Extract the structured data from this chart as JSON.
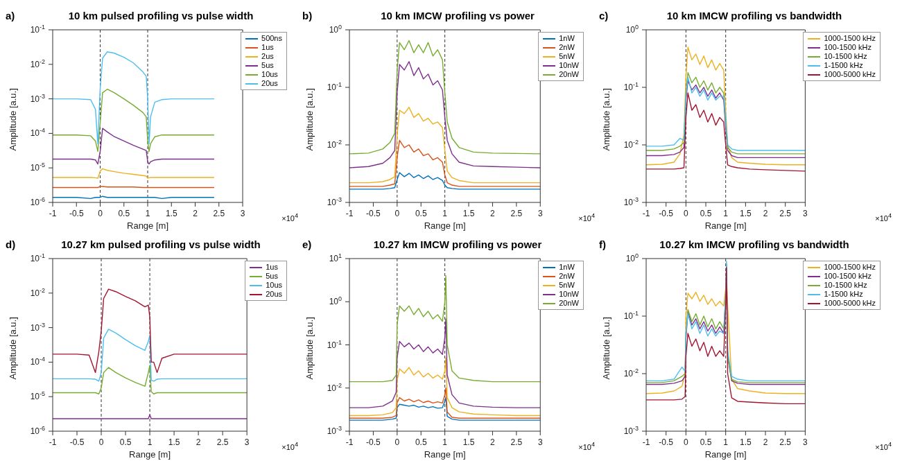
{
  "chart_data": [
    {
      "type": "line",
      "title": "10 km pulsed profiling vs pulse width",
      "xlabel": "Range  [m]",
      "ylabel": "Amplitude  [a.u.]",
      "annotations": [
        "a)",
        "×10$^{4}$"
      ],
      "log": true,
      "legend": "top right",
      "line_style": "solid",
      "xlim": [
        -1,
        3
      ],
      "xticks": [
        -1,
        -0.5,
        0,
        0.5,
        1,
        1.5,
        2,
        2.5,
        3
      ],
      "ylim": [
        1e-06,
        0.1
      ],
      "yticks": [
        {
          "value": 1e-06,
          "label": "10$^{-6}$"
        },
        {
          "value": 1e-05,
          "label": "10$^{-5}$"
        },
        {
          "value": 0.0001,
          "label": "10$^{-4}$"
        },
        {
          "value": 0.001,
          "label": "10$^{-3}$"
        },
        {
          "value": 0.01,
          "label": "10$^{-2}$"
        },
        {
          "value": 0.1,
          "label": "10$^{-1}$"
        }
      ],
      "ref_lines": [
        {
          "axis": "x",
          "value": 0,
          "color": "#333333",
          "line_style": "dashed"
        },
        {
          "axis": "x",
          "value": 1,
          "color": "#333333",
          "line_style": "dashed"
        }
      ],
      "x": [
        -1,
        -0.5,
        -0.2,
        -0.1,
        -0.05,
        0,
        0.05,
        0.15,
        0.3,
        0.5,
        0.7,
        0.9,
        0.97,
        1.0,
        1.03,
        1.06,
        1.15,
        1.3,
        1.5,
        2,
        2.4
      ],
      "series": [
        {
          "name": "500ns",
          "color": "#0072bd",
          "values": [
            1.4e-06,
            1.4e-06,
            1.3e-06,
            1.4e-06,
            1.4e-06,
            1.4e-06,
            1.5e-06,
            1.4e-06,
            1.4e-06,
            1.4e-06,
            1.4e-06,
            1.4e-06,
            1.4e-06,
            1.4e-06,
            1.4e-06,
            1.4e-06,
            1.4e-06,
            1.3e-06,
            1.4e-06,
            1.4e-06,
            1.4e-06
          ]
        },
        {
          "name": "1us",
          "color": "#d95319",
          "values": [
            2.7e-06,
            2.7e-06,
            2.7e-06,
            2.7e-06,
            2.7e-06,
            2.9e-06,
            2.9e-06,
            2.8e-06,
            2.8e-06,
            2.8e-06,
            2.8e-06,
            2.7e-06,
            2.7e-06,
            2.7e-06,
            2.7e-06,
            2.7e-06,
            2.7e-06,
            2.7e-06,
            2.7e-06,
            2.7e-06,
            2.7e-06
          ]
        },
        {
          "name": "2us",
          "color": "#edb120",
          "values": [
            5.3e-06,
            5.3e-06,
            5.3e-06,
            5.2e-06,
            5e-06,
            8e-06,
            9.5e-06,
            8.5e-06,
            7.8e-06,
            7e-06,
            6.5e-06,
            6e-06,
            5.8e-06,
            5e-06,
            5.2e-06,
            5.3e-06,
            5.3e-06,
            5.3e-06,
            5.3e-06,
            5.3e-06,
            5.3e-06
          ]
        },
        {
          "name": "5us",
          "color": "#7e2f8e",
          "values": [
            1.8e-05,
            1.8e-05,
            1.8e-05,
            1.7e-05,
            1.3e-05,
            3e-05,
            0.00014,
            0.00011,
            8e-05,
            6e-05,
            4.5e-05,
            3.5e-05,
            3.2e-05,
            1.5e-05,
            1.3e-05,
            1.5e-05,
            1.7e-05,
            1.8e-05,
            1.8e-05,
            1.8e-05,
            1.8e-05
          ]
        },
        {
          "name": "10us",
          "color": "#77ac30",
          "values": [
            9e-05,
            9e-05,
            8.5e-05,
            6e-05,
            3e-05,
            0.0002,
            0.0015,
            0.0019,
            0.0015,
            0.001,
            0.00065,
            0.0004,
            0.0003,
            6e-05,
            3e-05,
            5e-05,
            8e-05,
            9e-05,
            9e-05,
            9e-05,
            9e-05
          ]
        },
        {
          "name": "20us",
          "color": "#4dbeee",
          "values": [
            0.001,
            0.001,
            0.00095,
            0.0005,
            5e-05,
            0.002,
            0.015,
            0.023,
            0.021,
            0.016,
            0.011,
            0.006,
            0.0045,
            0.001,
            5e-05,
            0.0003,
            0.0008,
            0.00095,
            0.001,
            0.001,
            0.001
          ]
        }
      ]
    },
    {
      "type": "line",
      "title": "10 km IMCW profiling vs power",
      "xlabel": "Range  [m]",
      "ylabel": "Amplitude  [a.u.]",
      "annotations": [
        "b)",
        "×10$^{4}$"
      ],
      "log": true,
      "legend": "top right",
      "line_style": "solid",
      "xlim": [
        -1,
        3
      ],
      "xticks": [
        -1,
        -0.5,
        0,
        0.5,
        1,
        1.5,
        2,
        2.5,
        3
      ],
      "ylim": [
        0.001,
        1
      ],
      "yticks": [
        {
          "value": 0.001,
          "label": "10$^{-3}$"
        },
        {
          "value": 0.01,
          "label": "10$^{-2}$"
        },
        {
          "value": 0.1,
          "label": "10$^{-1}$"
        },
        {
          "value": 1,
          "label": "10$^{0}$"
        }
      ],
      "ref_lines": [
        {
          "axis": "x",
          "value": 0,
          "color": "#333333",
          "line_style": "dashed"
        },
        {
          "axis": "x",
          "value": 1,
          "color": "#333333",
          "line_style": "dashed"
        }
      ],
      "x": [
        -1,
        -0.6,
        -0.3,
        -0.15,
        -0.05,
        0,
        0.05,
        0.15,
        0.25,
        0.35,
        0.45,
        0.55,
        0.65,
        0.75,
        0.85,
        0.95,
        1.0,
        1.05,
        1.15,
        1.3,
        1.6,
        2,
        2.5,
        3
      ],
      "series": [
        {
          "name": "1nW",
          "color": "#0072bd",
          "values": [
            0.0017,
            0.0017,
            0.0017,
            0.00175,
            0.0018,
            0.0025,
            0.0033,
            0.0028,
            0.0032,
            0.0027,
            0.003,
            0.0026,
            0.0029,
            0.0025,
            0.0027,
            0.0024,
            0.002,
            0.0018,
            0.00175,
            0.0017,
            0.0017,
            0.0017,
            0.0017,
            0.0017
          ]
        },
        {
          "name": "2nW",
          "color": "#d95319",
          "values": [
            0.0019,
            0.0019,
            0.0019,
            0.002,
            0.0021,
            0.006,
            0.012,
            0.009,
            0.01,
            0.0075,
            0.0085,
            0.0065,
            0.007,
            0.0055,
            0.006,
            0.005,
            0.003,
            0.0022,
            0.002,
            0.0019,
            0.0019,
            0.0019,
            0.0019,
            0.0019
          ]
        },
        {
          "name": "5nW",
          "color": "#edb120",
          "values": [
            0.0022,
            0.0022,
            0.0023,
            0.0025,
            0.0028,
            0.015,
            0.04,
            0.035,
            0.045,
            0.03,
            0.035,
            0.026,
            0.029,
            0.023,
            0.025,
            0.02,
            0.008,
            0.0035,
            0.0027,
            0.0024,
            0.0022,
            0.0022,
            0.0022,
            0.0022
          ]
        },
        {
          "name": "10nW",
          "color": "#7e2f8e",
          "values": [
            0.004,
            0.0042,
            0.0048,
            0.006,
            0.008,
            0.08,
            0.25,
            0.2,
            0.28,
            0.16,
            0.22,
            0.14,
            0.17,
            0.11,
            0.13,
            0.09,
            0.03,
            0.012,
            0.007,
            0.005,
            0.0043,
            0.0042,
            0.0041,
            0.004
          ]
        },
        {
          "name": "20nW",
          "color": "#77ac30",
          "values": [
            0.007,
            0.0072,
            0.0085,
            0.011,
            0.016,
            0.2,
            0.6,
            0.45,
            0.65,
            0.4,
            0.55,
            0.4,
            0.6,
            0.35,
            0.45,
            0.3,
            0.08,
            0.025,
            0.013,
            0.009,
            0.0075,
            0.0072,
            0.0071,
            0.007
          ]
        }
      ]
    },
    {
      "type": "line",
      "title": "10 km IMCW profiling vs bandwidth",
      "xlabel": "Range  [m]",
      "ylabel": "Amplitude  [a.u.]",
      "annotations": [
        "c)",
        "×10$^{4}$"
      ],
      "log": true,
      "legend": "top right",
      "line_style": "solid",
      "xlim": [
        -1,
        3
      ],
      "xticks": [
        -1,
        -0.5,
        0,
        0.5,
        1,
        1.5,
        2,
        2.5,
        3
      ],
      "ylim": [
        0.001,
        1
      ],
      "yticks": [
        {
          "value": 0.001,
          "label": "10$^{-3}$"
        },
        {
          "value": 0.01,
          "label": "10$^{-2}$"
        },
        {
          "value": 0.1,
          "label": "10$^{-1}$"
        },
        {
          "value": 1,
          "label": "10$^{0}$"
        }
      ],
      "ref_lines": [
        {
          "axis": "x",
          "value": 0,
          "color": "#333333",
          "line_style": "dashed"
        },
        {
          "axis": "x",
          "value": 1,
          "color": "#333333",
          "line_style": "dashed"
        }
      ],
      "x": [
        -1,
        -0.6,
        -0.3,
        -0.15,
        -0.05,
        0,
        0.05,
        0.15,
        0.25,
        0.35,
        0.45,
        0.55,
        0.65,
        0.75,
        0.85,
        0.95,
        1.0,
        1.05,
        1.15,
        1.3,
        1.6,
        2,
        2.5,
        3
      ],
      "series": [
        {
          "name": "1000-1500 kHz",
          "color": "#edb120",
          "values": [
            0.0045,
            0.0046,
            0.005,
            0.007,
            0.015,
            0.15,
            0.5,
            0.3,
            0.38,
            0.25,
            0.35,
            0.22,
            0.3,
            0.2,
            0.26,
            0.2,
            0.04,
            0.01,
            0.006,
            0.005,
            0.0048,
            0.0046,
            0.0045,
            0.0045
          ]
        },
        {
          "name": "100-1500 kHz",
          "color": "#7e2f8e",
          "values": [
            0.0065,
            0.0065,
            0.0068,
            0.0075,
            0.009,
            0.06,
            0.13,
            0.09,
            0.11,
            0.08,
            0.1,
            0.07,
            0.09,
            0.065,
            0.08,
            0.06,
            0.02,
            0.008,
            0.0065,
            0.006,
            0.006,
            0.006,
            0.006,
            0.006
          ]
        },
        {
          "name": "10-1500 kHz",
          "color": "#77ac30",
          "values": [
            0.008,
            0.008,
            0.0085,
            0.0095,
            0.011,
            0.08,
            0.18,
            0.12,
            0.15,
            0.1,
            0.13,
            0.09,
            0.12,
            0.08,
            0.1,
            0.08,
            0.025,
            0.009,
            0.0075,
            0.007,
            0.007,
            0.007,
            0.007,
            0.007
          ]
        },
        {
          "name": "1-1500 kHz",
          "color": "#4dbeee",
          "values": [
            0.0095,
            0.0095,
            0.01,
            0.013,
            0.012,
            0.07,
            0.15,
            0.08,
            0.1,
            0.07,
            0.09,
            0.06,
            0.08,
            0.06,
            0.07,
            0.07,
            0.03,
            0.01,
            0.0085,
            0.008,
            0.008,
            0.008,
            0.008,
            0.008
          ]
        },
        {
          "name": "1000-5000 kHz",
          "color": "#a2142f",
          "values": [
            0.0038,
            0.0038,
            0.0038,
            0.0039,
            0.004,
            0.03,
            0.08,
            0.04,
            0.05,
            0.03,
            0.04,
            0.025,
            0.035,
            0.022,
            0.03,
            0.025,
            0.01,
            0.0045,
            0.0042,
            0.004,
            0.0038,
            0.0037,
            0.0036,
            0.0035
          ]
        }
      ]
    },
    {
      "type": "line",
      "title": "10.27 km pulsed profiling vs pulse width",
      "xlabel": "Range  [m]",
      "ylabel": "Amplitude  [a.u.]",
      "annotations": [
        "d)",
        "×10$^{4}$"
      ],
      "log": true,
      "legend": "top right",
      "line_style": "solid",
      "xlim": [
        -1,
        3
      ],
      "xticks": [
        -1,
        -0.5,
        0,
        0.5,
        1,
        1.5,
        2,
        2.5,
        3
      ],
      "ylim": [
        1e-06,
        0.1
      ],
      "yticks": [
        {
          "value": 1e-06,
          "label": "10$^{-6}$"
        },
        {
          "value": 1e-05,
          "label": "10$^{-5}$"
        },
        {
          "value": 0.0001,
          "label": "10$^{-4}$"
        },
        {
          "value": 0.001,
          "label": "10$^{-3}$"
        },
        {
          "value": 0.01,
          "label": "10$^{-2}$"
        },
        {
          "value": 0.1,
          "label": "10$^{-1}$"
        }
      ],
      "ref_lines": [
        {
          "axis": "x",
          "value": 0,
          "color": "#333333",
          "line_style": "dashed"
        },
        {
          "axis": "x",
          "value": 1,
          "color": "#333333",
          "line_style": "dashed"
        }
      ],
      "x": [
        -1,
        -0.5,
        -0.25,
        -0.12,
        -0.05,
        0,
        0.05,
        0.15,
        0.3,
        0.5,
        0.7,
        0.9,
        0.97,
        1.0,
        1.03,
        1.08,
        1.15,
        1.25,
        1.5,
        2,
        2.5,
        3
      ],
      "series": [
        {
          "name": "1us",
          "color": "#7e2f8e",
          "values": [
            2.3e-06,
            2.3e-06,
            2.3e-06,
            2.3e-06,
            2.3e-06,
            2.3e-06,
            2.3e-06,
            2.3e-06,
            2.3e-06,
            2.3e-06,
            2.3e-06,
            2.3e-06,
            2.3e-06,
            3e-06,
            2.3e-06,
            2.3e-06,
            2.3e-06,
            2.3e-06,
            2.3e-06,
            2.3e-06,
            2.3e-06,
            2.3e-06
          ]
        },
        {
          "name": "5us",
          "color": "#77ac30",
          "values": [
            1.3e-05,
            1.3e-05,
            1.3e-05,
            1.3e-05,
            1.2e-05,
            1.8e-05,
            5e-05,
            7e-05,
            5e-05,
            3.5e-05,
            2.6e-05,
            2e-05,
            5e-05,
            8e-05,
            1.4e-05,
            1.2e-05,
            1.3e-05,
            1.3e-05,
            1.3e-05,
            1.3e-05,
            1.3e-05,
            1.3e-05
          ]
        },
        {
          "name": "10us",
          "color": "#4dbeee",
          "values": [
            3.3e-05,
            3.3e-05,
            3.3e-05,
            3.2e-05,
            2.8e-05,
            5e-05,
            0.0005,
            0.0009,
            0.0007,
            0.00045,
            0.0003,
            0.00022,
            0.0004,
            0.0006,
            3e-05,
            2.8e-05,
            3.2e-05,
            3.3e-05,
            3.3e-05,
            3.3e-05,
            3.3e-05,
            3.3e-05
          ]
        },
        {
          "name": "20us",
          "color": "#a2142f",
          "values": [
            0.00017,
            0.00017,
            0.00016,
            5e-05,
            0.0002,
            0.0008,
            0.007,
            0.013,
            0.011,
            0.008,
            0.006,
            0.004,
            0.0045,
            0.002,
            0.0001,
            0.0001,
            5e-05,
            0.00013,
            0.00017,
            0.00017,
            0.00017,
            0.00017
          ]
        }
      ]
    },
    {
      "type": "line",
      "title": "10.27 km IMCW profiling vs power",
      "xlabel": "Range  [m]",
      "ylabel": "Amplitude  [a.u.]",
      "annotations": [
        "e)",
        "×10$^{4}$"
      ],
      "log": true,
      "legend": "top right",
      "line_style": "solid",
      "xlim": [
        -1,
        3
      ],
      "xticks": [
        -1,
        -0.5,
        0,
        0.5,
        1,
        1.5,
        2,
        2.5,
        3
      ],
      "ylim": [
        0.001,
        10
      ],
      "yticks": [
        {
          "value": 0.001,
          "label": "10$^{-3}$"
        },
        {
          "value": 0.01,
          "label": "10$^{-2}$"
        },
        {
          "value": 0.1,
          "label": "10$^{-1}$"
        },
        {
          "value": 1,
          "label": "10$^{0}$"
        },
        {
          "value": 10,
          "label": "10$^{1}$"
        }
      ],
      "ref_lines": [
        {
          "axis": "x",
          "value": 0,
          "color": "#333333",
          "line_style": "dashed"
        },
        {
          "axis": "x",
          "value": 1,
          "color": "#333333",
          "line_style": "dashed"
        }
      ],
      "x": [
        -1,
        -0.6,
        -0.3,
        -0.1,
        -0.02,
        0,
        0.05,
        0.15,
        0.25,
        0.35,
        0.45,
        0.55,
        0.65,
        0.75,
        0.85,
        0.95,
        1.0,
        1.02,
        1.05,
        1.15,
        1.3,
        1.6,
        2,
        2.5,
        3
      ],
      "series": [
        {
          "name": "1nW",
          "color": "#0072bd",
          "values": [
            0.0018,
            0.0018,
            0.0018,
            0.0019,
            0.002,
            0.0035,
            0.0042,
            0.004,
            0.0038,
            0.004,
            0.0036,
            0.0038,
            0.0035,
            0.0037,
            0.0034,
            0.0035,
            0.005,
            0.006,
            0.0022,
            0.0019,
            0.0018,
            0.0018,
            0.0018,
            0.0018,
            0.0018
          ]
        },
        {
          "name": "2nW",
          "color": "#d95319",
          "values": [
            0.002,
            0.002,
            0.002,
            0.0021,
            0.0023,
            0.0045,
            0.006,
            0.005,
            0.0055,
            0.0048,
            0.0053,
            0.0046,
            0.005,
            0.0045,
            0.0048,
            0.0045,
            0.007,
            0.01,
            0.0028,
            0.0021,
            0.002,
            0.002,
            0.002,
            0.002,
            0.002
          ]
        },
        {
          "name": "5nW",
          "color": "#edb120",
          "values": [
            0.0023,
            0.0023,
            0.0024,
            0.0027,
            0.0035,
            0.015,
            0.028,
            0.022,
            0.03,
            0.02,
            0.025,
            0.018,
            0.022,
            0.017,
            0.02,
            0.016,
            0.025,
            0.05,
            0.006,
            0.0035,
            0.0028,
            0.0025,
            0.0024,
            0.0023,
            0.0023
          ]
        },
        {
          "name": "10nW",
          "color": "#7e2f8e",
          "values": [
            0.0035,
            0.0035,
            0.0038,
            0.005,
            0.008,
            0.05,
            0.12,
            0.09,
            0.11,
            0.08,
            0.1,
            0.07,
            0.09,
            0.065,
            0.08,
            0.06,
            0.15,
            0.4,
            0.02,
            0.007,
            0.0045,
            0.0038,
            0.0036,
            0.0035,
            0.0035
          ]
        },
        {
          "name": "20nW",
          "color": "#77ac30",
          "values": [
            0.014,
            0.014,
            0.014,
            0.015,
            0.02,
            0.3,
            0.8,
            0.6,
            0.8,
            0.5,
            0.7,
            0.45,
            0.6,
            0.4,
            0.5,
            0.35,
            1,
            4,
            0.1,
            0.025,
            0.017,
            0.015,
            0.014,
            0.014,
            0.014
          ]
        }
      ]
    },
    {
      "type": "line",
      "title": "10.27 km IMCW profiling vs bandwidth",
      "xlabel": "Range  [m]",
      "ylabel": "Amplitude  [a.u.]",
      "annotations": [
        "f)",
        "×10$^{4}$"
      ],
      "log": true,
      "legend": "top right",
      "line_style": "solid",
      "xlim": [
        -1,
        3
      ],
      "xticks": [
        -1,
        -0.5,
        0,
        0.5,
        1,
        1.5,
        2,
        2.5,
        3
      ],
      "ylim": [
        0.001,
        1
      ],
      "yticks": [
        {
          "value": 0.001,
          "label": "10$^{-3}$"
        },
        {
          "value": 0.01,
          "label": "10$^{-2}$"
        },
        {
          "value": 0.1,
          "label": "10$^{-1}$"
        },
        {
          "value": 1,
          "label": "10$^{0}$"
        }
      ],
      "ref_lines": [
        {
          "axis": "x",
          "value": 0,
          "color": "#333333",
          "line_style": "dashed"
        },
        {
          "axis": "x",
          "value": 1,
          "color": "#333333",
          "line_style": "dashed"
        }
      ],
      "x": [
        -1,
        -0.6,
        -0.3,
        -0.1,
        -0.02,
        0,
        0.05,
        0.15,
        0.25,
        0.35,
        0.45,
        0.55,
        0.65,
        0.75,
        0.85,
        0.95,
        1.0,
        1.02,
        1.05,
        1.15,
        1.3,
        1.6,
        2,
        2.5,
        3
      ],
      "series": [
        {
          "name": "1000-1500 kHz",
          "color": "#edb120",
          "values": [
            0.0045,
            0.0046,
            0.005,
            0.006,
            0.01,
            0.1,
            0.25,
            0.2,
            0.26,
            0.18,
            0.23,
            0.16,
            0.2,
            0.15,
            0.18,
            0.15,
            0.3,
            0.5,
            0.15,
            0.008,
            0.0055,
            0.005,
            0.0046,
            0.0045,
            0.0045
          ]
        },
        {
          "name": "100-1500 kHz",
          "color": "#7e2f8e",
          "values": [
            0.0065,
            0.0065,
            0.0068,
            0.0075,
            0.009,
            0.04,
            0.12,
            0.07,
            0.09,
            0.06,
            0.08,
            0.055,
            0.07,
            0.05,
            0.065,
            0.05,
            0.2,
            0.8,
            0.02,
            0.0075,
            0.0068,
            0.0065,
            0.0065,
            0.0065,
            0.0065
          ]
        },
        {
          "name": "10-1500 kHz",
          "color": "#77ac30",
          "values": [
            0.007,
            0.007,
            0.0075,
            0.009,
            0.01,
            0.05,
            0.13,
            0.08,
            0.11,
            0.07,
            0.1,
            0.065,
            0.09,
            0.06,
            0.08,
            0.06,
            0.2,
            0.6,
            0.02,
            0.008,
            0.0072,
            0.007,
            0.007,
            0.007,
            0.007
          ]
        },
        {
          "name": "1-1500 kHz",
          "color": "#4dbeee",
          "values": [
            0.0075,
            0.0075,
            0.008,
            0.013,
            0.011,
            0.05,
            0.11,
            0.06,
            0.08,
            0.05,
            0.07,
            0.045,
            0.06,
            0.045,
            0.055,
            0.05,
            0.25,
            0.9,
            0.025,
            0.009,
            0.008,
            0.0075,
            0.0075,
            0.0075,
            0.0075
          ]
        },
        {
          "name": "1000-5000 kHz",
          "color": "#a2142f",
          "values": [
            0.0035,
            0.0035,
            0.0035,
            0.0036,
            0.004,
            0.02,
            0.05,
            0.03,
            0.04,
            0.025,
            0.035,
            0.02,
            0.03,
            0.02,
            0.025,
            0.02,
            0.15,
            0.7,
            0.01,
            0.0038,
            0.0033,
            0.0032,
            0.0031,
            0.003,
            0.003
          ]
        }
      ]
    }
  ]
}
